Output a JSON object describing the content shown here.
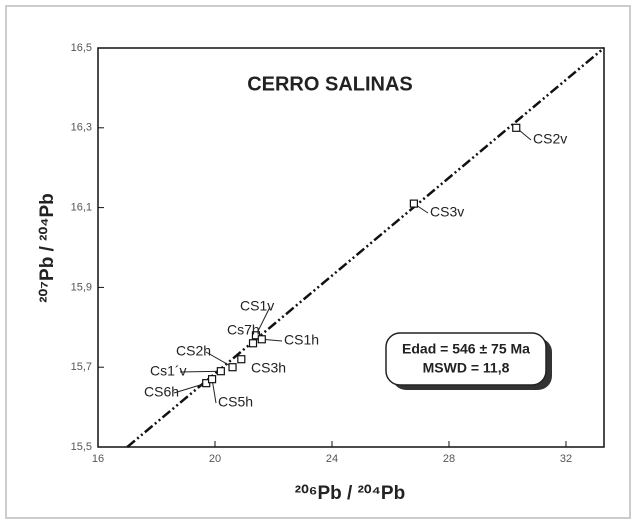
{
  "chart_data": {
    "type": "scatter",
    "title": "CERRO SALINAS",
    "x_label": "²⁰⁶Pb / ²⁰⁴Pb",
    "y_label": "²⁰⁷Pb / ²⁰⁴Pb",
    "x": [
      30.3,
      26.8,
      21.4,
      21.6,
      21.3,
      20.6,
      20.9,
      20.2,
      19.7,
      19.9
    ],
    "values": [
      16.3,
      16.11,
      15.78,
      15.77,
      15.76,
      15.7,
      15.72,
      15.69,
      15.66,
      15.67
    ],
    "point_labels": [
      "CS2v",
      "CS3v",
      "CS1v",
      "CS1h",
      "Cs7h",
      "CS2h",
      "CS3h",
      "Cs1´v",
      "CS6h",
      "CS5h"
    ],
    "fit_line": {
      "x": [
        17.0,
        33.3
      ],
      "y": [
        15.5,
        16.5
      ]
    },
    "annotation": [
      "Edad = 546 ± 75 Ma",
      "MSWD = 11,8"
    ],
    "xlim": [
      16,
      33.3
    ],
    "ylim": [
      15.5,
      16.5
    ],
    "xticks": [
      16,
      20,
      24,
      28,
      32
    ],
    "yticks": [
      {
        "value": 15.5,
        "label": "15,5"
      },
      {
        "value": 15.7,
        "label": "15,7"
      },
      {
        "value": 15.9,
        "label": "15,9"
      },
      {
        "value": 16.1,
        "label": "16,1"
      },
      {
        "value": 16.3,
        "label": "16,3"
      },
      {
        "value": 16.5,
        "label": "16,5"
      }
    ],
    "grid": false
  }
}
